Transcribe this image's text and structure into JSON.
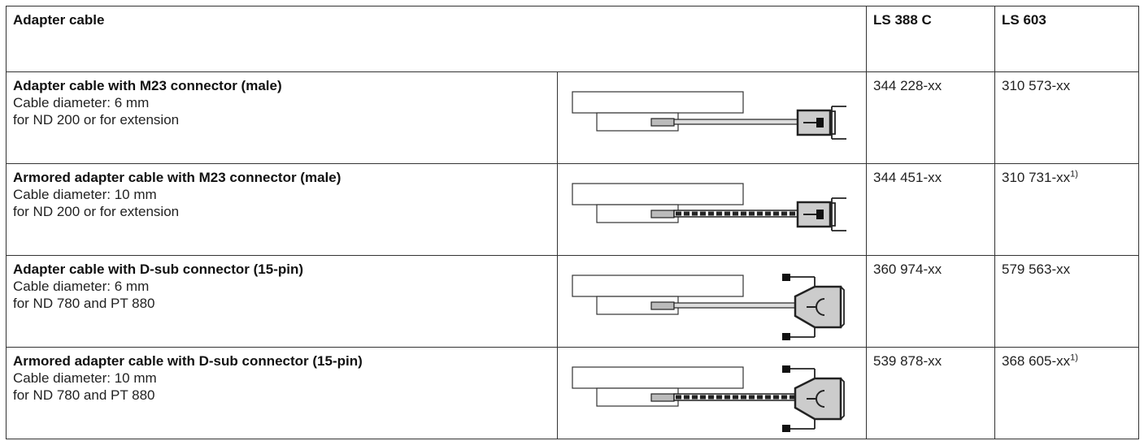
{
  "table": {
    "header": [
      "Adapter cable",
      "LS 388 C",
      "LS 603"
    ],
    "rows": [
      {
        "title": "Adapter cable with M23 connector (male)",
        "lines": [
          "Cable diameter: 6 mm",
          "for ND 200 or for extension"
        ],
        "ls388c": "344 228-xx",
        "ls603": "310 573-xx"
      },
      {
        "title": "Armored adapter cable with M23 connector (male)",
        "lines": [
          "Cable diameter: 10 mm",
          "for ND 200 or for extension"
        ],
        "ls388c": "344 451-xx",
        "ls603": "310 731-xx",
        "note": "1)"
      },
      {
        "title": "Adapter cable with D-sub connector (15-pin)",
        "lines": [
          "Cable diameter: 6 mm",
          "for ND 780 and PT 880"
        ],
        "ls388c": "360 974-xx",
        "ls603": "579 563-xx"
      },
      {
        "title": "Armored adapter cable with D-sub connector (15-pin)",
        "lines": [
          "Cable diameter: 10 mm",
          "for ND 780 and PT 880"
        ],
        "ls388c": "539 878-xx",
        "ls603": "368 605-xx",
        "note": "1)"
      }
    ]
  }
}
